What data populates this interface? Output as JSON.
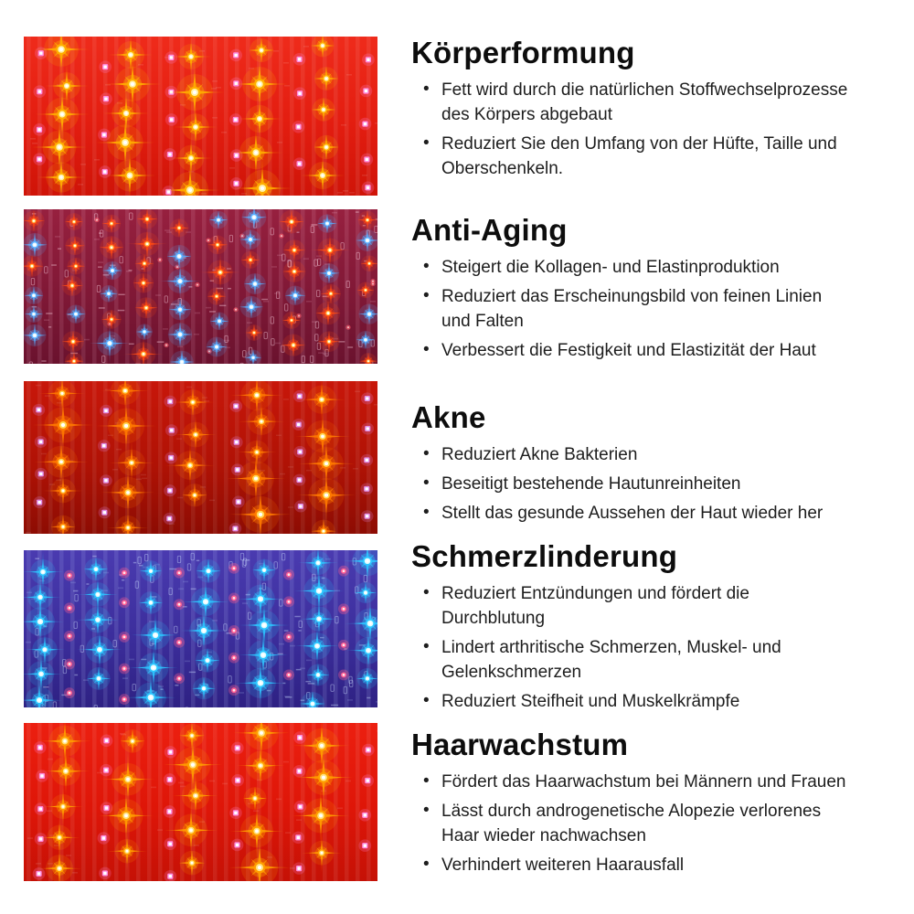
{
  "page": {
    "background": "#ffffff",
    "bullet_char": "•"
  },
  "sections": [
    {
      "title": "Körperformung",
      "bullets": [
        "Fett wird durch die natürlichen Stoffwechselprozesse des Körpers abgebaut",
        "Reduziert Sie den Umfang von der Hüfte, Taille und Oberschenkeln."
      ],
      "panel": {
        "label": "Rotes LED-Lichtpanel mit gelb leuchtenden Dioden",
        "style": "red-sparse",
        "bg_top": "#ef2b1b",
        "bg_mid": "#e31d10",
        "bg_bottom": "#cf1408",
        "trace": "#ffffff",
        "trace_op": 0.08,
        "star_glow": "#ffae00",
        "star_core": "#fff1a8",
        "dot": "#ff8ae0"
      }
    },
    {
      "title": "Anti-Aging",
      "bullets": [
        "Steigert die Kollagen- und Elastinproduktion",
        "Reduziert das Erscheinungsbild von feinen Linien und Falten",
        "Verbessert die Festigkeit und Elastizität der Haut"
      ],
      "panel": {
        "label": "LED-Panel mit rot und blau leuchtenden Dioden",
        "style": "mixed-dense",
        "bg_top": "#97203f",
        "bg_mid": "#801836",
        "bg_bottom": "#6a122e",
        "trace": "#ffc7dd",
        "trace_op": 0.12,
        "star_glow": "#57adff",
        "star_core": "#e2f4ff",
        "star_glow_alt": "#ff4a14",
        "star_core_alt": "#ffc84e",
        "dot": "#ff5f6f",
        "comp": "#ffd9e8"
      }
    },
    {
      "title": "Akne",
      "bullets": [
        "Reduziert Akne Bakterien",
        "Beseitigt bestehende Hautunreinheiten",
        "Stellt das gesunde Aussehen der Haut wieder her"
      ],
      "panel": {
        "label": "Dunkelrotes LED-Lichtpanel mit orange leuchtenden Dioden",
        "style": "red-sparse",
        "bg_top": "#c8170a",
        "bg_mid": "#b01205",
        "bg_bottom": "#8d0c03",
        "trace": "#ffffff",
        "trace_op": 0.07,
        "star_glow": "#ff7900",
        "star_core": "#ffd955",
        "dot": "#e08ae6"
      }
    },
    {
      "title": "Schmerzlinderung",
      "bullets": [
        "Reduziert Entzündungen und fördert die Durchblutung",
        "Lindert arthritische Schmerzen, Muskel- und Gelenkschmerzen",
        "Reduziert Steifheit und Muskelkrämpfe"
      ],
      "panel": {
        "label": "Blaues LED-Lichtpanel mit cyan leuchtenden Dioden",
        "style": "blue-dense",
        "bg_top": "#4a3bb0",
        "bg_mid": "#3c2e9c",
        "bg_bottom": "#2e2183",
        "trace": "#bcd0ff",
        "trace_op": 0.14,
        "star_glow": "#2cc6ff",
        "star_core": "#dffaff",
        "dot": "#ff5f93",
        "comp": "#cfe0ff"
      }
    },
    {
      "title": "Haarwachstum",
      "bullets": [
        "Fördert das Haarwachstum bei Männern und Frauen",
        "Lässt durch androgenetische Alopezie verlorenes Haar wieder nachwachsen",
        "Verhindert weiteren Haarausfall"
      ],
      "panel": {
        "label": "Rotes LED-Lichtpanel mit gelb-orange leuchtenden Dioden",
        "style": "red-sparse",
        "bg_top": "#ec1f10",
        "bg_mid": "#de1608",
        "bg_bottom": "#c51106",
        "trace": "#ffffff",
        "trace_op": 0.08,
        "star_glow": "#ff9d00",
        "star_core": "#ffe27e",
        "dot": "#ff8ae0"
      }
    }
  ]
}
